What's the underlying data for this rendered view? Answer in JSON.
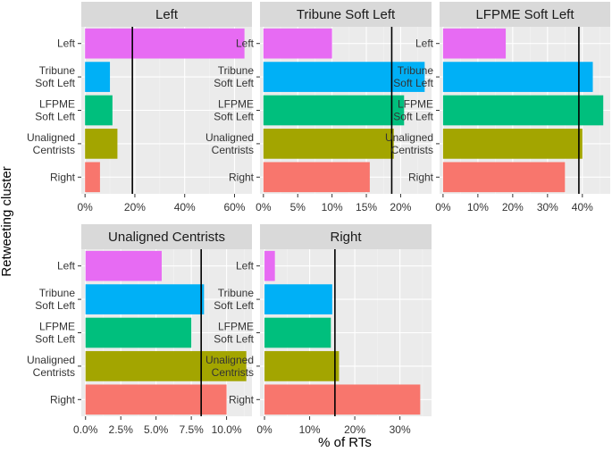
{
  "chart_data": {
    "type": "bar",
    "orientation": "horizontal",
    "layout": "facet-wrap",
    "xlabel": "% of RTs",
    "ylabel": "Retweeting cluster",
    "categories": [
      {
        "label": "Left",
        "lines": [
          "Left"
        ],
        "color": "#E76BF3"
      },
      {
        "label": "Tribune Soft Left",
        "lines": [
          "Tribune",
          "Soft Left"
        ],
        "color": "#00B0F6"
      },
      {
        "label": "LFPME Soft Left",
        "lines": [
          "LFPME",
          "Soft Left"
        ],
        "color": "#00BF7D"
      },
      {
        "label": "Unaligned Centrists",
        "lines": [
          "Unaligned",
          "Centrists"
        ],
        "color": "#A3A500"
      },
      {
        "label": "Right",
        "lines": [
          "Right"
        ],
        "color": "#F8766D"
      }
    ],
    "panels": [
      {
        "title": "Left",
        "xlim": [
          -1.5,
          67
        ],
        "ticks": [
          0,
          20,
          40,
          60
        ],
        "tick_labels": [
          "0%",
          "20%",
          "40%",
          "60%"
        ],
        "values": [
          64,
          10,
          11,
          13,
          6
        ],
        "reference_line": 19
      },
      {
        "title": "Tribune Soft Left",
        "xlim": [
          -0.5,
          24.5
        ],
        "ticks": [
          0,
          5,
          10,
          15,
          20
        ],
        "tick_labels": [
          "0%",
          "5%",
          "10%",
          "15%",
          "20%"
        ],
        "values": [
          10,
          23.5,
          20.5,
          19,
          15.5
        ],
        "reference_line": 18.7
      },
      {
        "title": "LFPME Soft Left",
        "xlim": [
          -1,
          48
        ],
        "ticks": [
          0,
          10,
          20,
          30,
          40
        ],
        "tick_labels": [
          "0%",
          "10%",
          "20%",
          "30%",
          "40%"
        ],
        "values": [
          18,
          43,
          46,
          40,
          35
        ],
        "reference_line": 39
      },
      {
        "title": "Unaligned Centrists",
        "xlim": [
          -0.3,
          11.8
        ],
        "ticks": [
          0,
          2.5,
          5,
          7.5,
          10
        ],
        "tick_labels": [
          "0.0%",
          "2.5%",
          "5.0%",
          "7.5%",
          "10.0%"
        ],
        "values": [
          5.4,
          8.4,
          7.5,
          11.4,
          10
        ],
        "reference_line": 8.2
      },
      {
        "title": "Right",
        "xlim": [
          -1,
          37
        ],
        "ticks": [
          0,
          10,
          20,
          30
        ],
        "tick_labels": [
          "0%",
          "10%",
          "20%",
          "30%"
        ],
        "values": [
          2.3,
          15,
          14.7,
          16.5,
          34.5
        ],
        "reference_line": 15.6
      }
    ],
    "grid": true,
    "legend": "none"
  }
}
